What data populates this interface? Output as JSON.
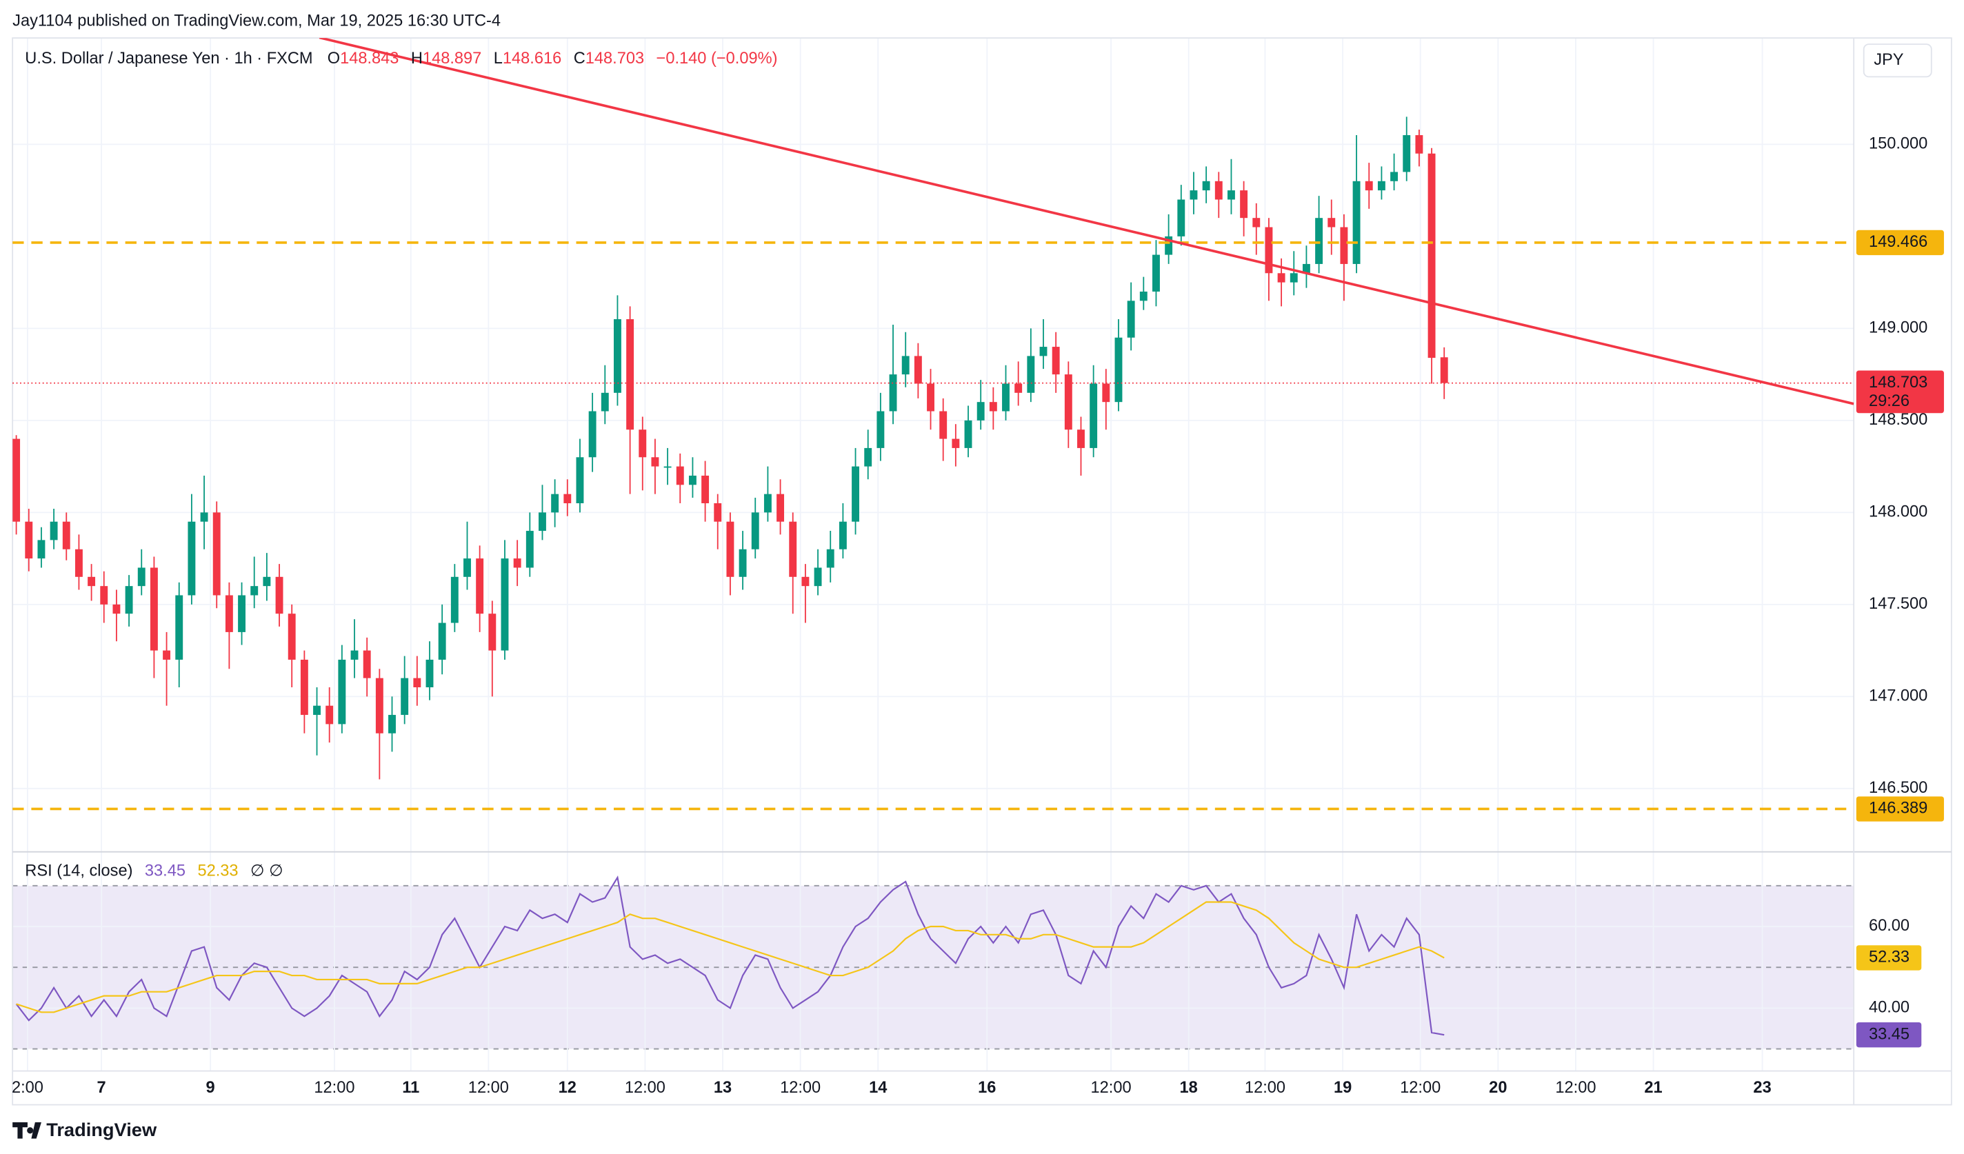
{
  "header": {
    "published": "Jay1104 published on TradingView.com, Mar 19, 2025 16:30 UTC-4",
    "brand": "TradingView"
  },
  "chart_data": [
    {
      "type": "candlestick",
      "title": "U.S. Dollar / Japanese Yen · 1h · FXCM",
      "legend_labels": {
        "open": "O",
        "high": "H",
        "low": "L",
        "close": "C"
      },
      "change": "−0.140 (−0.09%)",
      "currency": "JPY",
      "up_color": "#089981",
      "down_color": "#f23645",
      "open": [
        148.4,
        147.95,
        147.75,
        147.85,
        147.95,
        147.8,
        147.65,
        147.6,
        147.5,
        147.45,
        147.6,
        147.7,
        147.25,
        147.2,
        147.55,
        147.95,
        148.0,
        147.55,
        147.35,
        147.55,
        147.6,
        147.65,
        147.45,
        147.2,
        146.9,
        146.95,
        146.85,
        147.2,
        147.25,
        147.1,
        146.8,
        146.9,
        147.1,
        147.05,
        147.2,
        147.4,
        147.65,
        147.75,
        147.45,
        147.25,
        147.75,
        147.7,
        147.9,
        148.0,
        148.1,
        148.05,
        148.3,
        148.55,
        148.65,
        149.05,
        148.45,
        148.3,
        148.25,
        148.25,
        148.15,
        148.2,
        148.05,
        147.95,
        147.65,
        147.8,
        148.0,
        148.1,
        147.95,
        147.65,
        147.6,
        147.7,
        147.8,
        147.95,
        148.25,
        148.35,
        148.55,
        148.75,
        148.85,
        148.7,
        148.55,
        148.4,
        148.35,
        148.5,
        148.6,
        148.55,
        148.7,
        148.65,
        148.85,
        148.9,
        148.75,
        148.45,
        148.35,
        148.7,
        148.6,
        148.95,
        149.15,
        149.2,
        149.4,
        149.5,
        149.7,
        149.75,
        149.8,
        149.7,
        149.75,
        149.6,
        149.55,
        149.3,
        149.25,
        149.3,
        149.35,
        149.6,
        149.55,
        149.35,
        149.8,
        149.75,
        149.8,
        149.85,
        150.05,
        149.95,
        148.843
      ],
      "high": [
        148.42,
        148.02,
        147.92,
        148.02,
        148.0,
        147.88,
        147.72,
        147.68,
        147.58,
        147.66,
        147.8,
        147.76,
        147.35,
        147.62,
        148.1,
        148.2,
        148.06,
        147.62,
        147.62,
        147.76,
        147.78,
        147.72,
        147.5,
        147.25,
        147.05,
        147.05,
        147.28,
        147.42,
        147.32,
        147.15,
        147.0,
        147.22,
        147.22,
        147.3,
        147.5,
        147.72,
        147.95,
        147.82,
        147.52,
        147.85,
        147.85,
        148.0,
        148.15,
        148.18,
        148.18,
        148.4,
        148.65,
        148.8,
        149.18,
        149.12,
        148.52,
        148.4,
        148.35,
        148.32,
        148.3,
        148.28,
        148.1,
        148.0,
        147.9,
        148.08,
        148.25,
        148.18,
        148.0,
        147.72,
        147.8,
        147.9,
        148.05,
        148.35,
        148.45,
        148.65,
        149.02,
        148.98,
        148.92,
        148.78,
        148.62,
        148.48,
        148.58,
        148.72,
        148.68,
        148.8,
        148.82,
        149.0,
        149.05,
        148.98,
        148.82,
        148.52,
        148.8,
        148.78,
        149.05,
        149.25,
        149.28,
        149.48,
        149.62,
        149.78,
        149.85,
        149.88,
        149.85,
        149.92,
        149.8,
        149.68,
        149.6,
        149.38,
        149.42,
        149.45,
        149.72,
        149.7,
        149.62,
        150.05,
        149.9,
        149.88,
        149.95,
        150.15,
        150.08,
        149.98,
        148.897
      ],
      "low": [
        147.88,
        147.68,
        147.7,
        147.8,
        147.74,
        147.58,
        147.52,
        147.4,
        147.3,
        147.38,
        147.55,
        147.1,
        146.95,
        147.05,
        147.5,
        147.8,
        147.48,
        147.15,
        147.28,
        147.48,
        147.52,
        147.38,
        147.05,
        146.8,
        146.68,
        146.75,
        146.8,
        147.1,
        147.0,
        146.55,
        146.7,
        146.85,
        146.95,
        146.98,
        147.12,
        147.35,
        147.58,
        147.35,
        147.0,
        147.2,
        147.6,
        147.65,
        147.85,
        147.92,
        147.98,
        148.0,
        148.22,
        148.48,
        148.58,
        148.1,
        148.12,
        148.1,
        148.15,
        148.05,
        148.08,
        147.95,
        147.8,
        147.55,
        147.58,
        147.75,
        147.95,
        147.88,
        147.45,
        147.4,
        147.55,
        147.62,
        147.75,
        147.88,
        148.18,
        148.28,
        148.48,
        148.68,
        148.62,
        148.45,
        148.28,
        148.25,
        148.3,
        148.45,
        148.45,
        148.5,
        148.58,
        148.6,
        148.78,
        148.65,
        148.35,
        148.2,
        148.3,
        148.45,
        148.55,
        148.88,
        149.1,
        149.12,
        149.35,
        149.45,
        149.62,
        149.68,
        149.6,
        149.62,
        149.5,
        149.4,
        149.15,
        149.12,
        149.18,
        149.22,
        149.3,
        149.4,
        149.15,
        149.3,
        149.65,
        149.7,
        149.75,
        149.8,
        149.88,
        148.7,
        148.616
      ],
      "close": [
        147.95,
        147.75,
        147.85,
        147.95,
        147.8,
        147.65,
        147.6,
        147.5,
        147.45,
        147.6,
        147.7,
        147.25,
        147.2,
        147.55,
        147.95,
        148.0,
        147.55,
        147.35,
        147.55,
        147.6,
        147.65,
        147.45,
        147.2,
        146.9,
        146.95,
        146.85,
        147.2,
        147.25,
        147.1,
        146.8,
        146.9,
        147.1,
        147.05,
        147.2,
        147.4,
        147.65,
        147.75,
        147.45,
        147.25,
        147.75,
        147.7,
        147.9,
        148.0,
        148.1,
        148.05,
        148.3,
        148.55,
        148.65,
        149.05,
        148.45,
        148.3,
        148.25,
        148.25,
        148.15,
        148.2,
        148.05,
        147.95,
        147.65,
        147.8,
        148.0,
        148.1,
        147.95,
        147.65,
        147.6,
        147.7,
        147.8,
        147.95,
        148.25,
        148.35,
        148.55,
        148.75,
        148.85,
        148.7,
        148.55,
        148.4,
        148.35,
        148.5,
        148.6,
        148.55,
        148.7,
        148.65,
        148.85,
        148.9,
        148.75,
        148.45,
        148.35,
        148.7,
        148.6,
        148.95,
        149.15,
        149.2,
        149.4,
        149.5,
        149.7,
        149.75,
        149.8,
        149.7,
        149.75,
        149.6,
        149.55,
        149.3,
        149.25,
        149.3,
        149.35,
        149.6,
        149.55,
        149.35,
        149.8,
        149.75,
        149.8,
        149.85,
        150.05,
        149.95,
        148.84,
        148.703
      ],
      "xlim": [
        -0.3,
        146.7
      ],
      "xticks": [
        {
          "value": 0.9,
          "label": "2:00"
        },
        {
          "value": 6.8,
          "label": "7"
        },
        {
          "value": 15.5,
          "label": "9"
        },
        {
          "value": 25.4,
          "label": "12:00"
        },
        {
          "value": 31.5,
          "label": "11"
        },
        {
          "value": 37.7,
          "label": "12:00"
        },
        {
          "value": 44,
          "label": "12"
        },
        {
          "value": 50.2,
          "label": "12:00"
        },
        {
          "value": 56.4,
          "label": "13"
        },
        {
          "value": 62.6,
          "label": "12:00"
        },
        {
          "value": 68.8,
          "label": "14"
        },
        {
          "value": 77.5,
          "label": "16"
        },
        {
          "value": 87.4,
          "label": "12:00"
        },
        {
          "value": 93.6,
          "label": "18"
        },
        {
          "value": 99.7,
          "label": "12:00"
        },
        {
          "value": 105.9,
          "label": "19"
        },
        {
          "value": 112.1,
          "label": "12:00"
        },
        {
          "value": 118.3,
          "label": "20"
        },
        {
          "value": 124.5,
          "label": "12:00"
        },
        {
          "value": 130.7,
          "label": "21"
        },
        {
          "value": 139.4,
          "label": "23"
        }
      ],
      "ylim": [
        146.156,
        150.578
      ],
      "yticks": [
        {
          "value": 146.5,
          "label": "146.500"
        },
        {
          "value": 147,
          "label": "147.000"
        },
        {
          "value": 147.5,
          "label": "147.500"
        },
        {
          "value": 148,
          "label": "148.000"
        },
        {
          "value": 148.5,
          "label": "148.500"
        },
        {
          "value": 149,
          "label": "149.000"
        },
        {
          "value": 150,
          "label": "150.000"
        }
      ],
      "grid": true,
      "levels": [
        {
          "value": 149.466,
          "color": "#f5b50d"
        },
        {
          "value": 146.389,
          "color": "#f5b50d"
        }
      ],
      "trendline": {
        "start": [
          24.2,
          150.58
        ],
        "end": [
          146.7,
          148.59
        ],
        "color": "#f23645"
      },
      "last_price": {
        "countdown": "29:26",
        "color": "#f23645"
      }
    },
    {
      "type": "line",
      "title": "RSI (14, close)",
      "extra": "∅ ∅",
      "series": [
        {
          "color": "#7e57c2",
          "values": [
            41,
            37,
            40,
            45,
            40,
            43,
            38,
            42,
            38,
            44,
            47,
            40,
            38,
            46,
            54,
            55,
            45,
            42,
            48,
            51,
            50,
            45,
            40,
            38,
            40,
            43,
            48,
            46,
            44,
            38,
            42,
            49,
            47,
            50,
            58,
            62,
            56,
            50,
            55,
            60,
            59,
            64,
            62,
            63,
            61,
            68,
            66,
            67,
            72,
            55,
            52,
            53,
            51,
            52,
            50,
            48,
            42,
            40,
            48,
            53,
            52,
            45,
            40,
            42,
            44,
            48,
            55,
            60,
            62,
            66,
            69,
            71,
            63,
            57,
            54,
            51,
            57,
            60,
            56,
            60,
            56,
            63,
            64,
            58,
            48,
            46,
            54,
            50,
            60,
            65,
            62,
            68,
            66,
            70,
            69,
            70,
            66,
            68,
            62,
            58,
            50,
            45,
            46,
            48,
            58,
            52,
            45,
            63,
            54,
            58,
            55,
            62,
            58,
            34,
            33.45
          ]
        },
        {
          "color": "#f5c518",
          "values": [
            41,
            40,
            39,
            39,
            40,
            41,
            42,
            43,
            43,
            43,
            44,
            44,
            44,
            45,
            46,
            47,
            48,
            48,
            48,
            49,
            49,
            49,
            48,
            48,
            47,
            47,
            47,
            47,
            47,
            46,
            46,
            46,
            46,
            47,
            48,
            49,
            50,
            50,
            51,
            52,
            53,
            54,
            55,
            56,
            57,
            58,
            59,
            60,
            61,
            63,
            62,
            62,
            61,
            60,
            59,
            58,
            57,
            56,
            55,
            54,
            53,
            52,
            51,
            50,
            49,
            48,
            48,
            49,
            50,
            52,
            54,
            57,
            59,
            60,
            60,
            59,
            59,
            58,
            58,
            58,
            57,
            57,
            58,
            58,
            57,
            56,
            55,
            55,
            55,
            55,
            56,
            58,
            60,
            62,
            64,
            66,
            66,
            66,
            65,
            64,
            62,
            59,
            56,
            54,
            52,
            51,
            50,
            50,
            51,
            52,
            53,
            54,
            55,
            54,
            52.33
          ]
        }
      ],
      "ylim": [
        24.6,
        78.3
      ],
      "yticks": [
        {
          "value": 40,
          "label": "40.00"
        },
        {
          "value": 60,
          "label": "60.00"
        }
      ],
      "bands": [
        70,
        50,
        30
      ],
      "band_fill": "#ede9f7"
    }
  ]
}
